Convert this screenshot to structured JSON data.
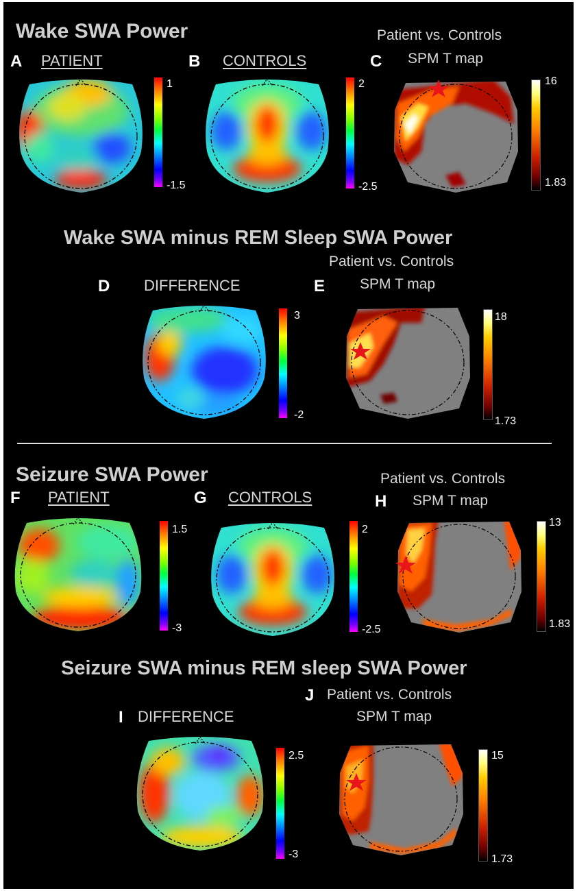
{
  "sections": {
    "wake_title": "Wake SWA Power",
    "wake_minus_rem_title": "Wake SWA minus REM Sleep SWA Power",
    "seizure_title": "Seizure SWA Power",
    "seizure_minus_rem_title": "Seizure SWA minus REM sleep SWA Power"
  },
  "panels": {
    "A": {
      "letter": "A",
      "label": "PATIENT",
      "cbar_max": "1",
      "cbar_min": "-1.5"
    },
    "B": {
      "letter": "B",
      "label": "CONTROLS",
      "cbar_max": "2",
      "cbar_min": "-2.5"
    },
    "C": {
      "letter": "C",
      "caption1": "Patient vs. Controls",
      "caption2": "SPM T map",
      "cbar_max": "16",
      "cbar_min": "1.83"
    },
    "D": {
      "letter": "D",
      "label": "DIFFERENCE",
      "cbar_max": "3",
      "cbar_min": "-2"
    },
    "E": {
      "letter": "E",
      "caption1": "Patient vs. Controls",
      "caption2": "SPM T map",
      "cbar_max": "18",
      "cbar_min": "1.73"
    },
    "F": {
      "letter": "F",
      "label": "PATIENT",
      "cbar_max": "1.5",
      "cbar_min": "-3"
    },
    "G": {
      "letter": "G",
      "label": "CONTROLS",
      "cbar_max": "2",
      "cbar_min": "-2.5"
    },
    "H": {
      "letter": "H",
      "caption1": "Patient vs. Controls",
      "caption2": "SPM T map",
      "cbar_max": "13",
      "cbar_min": "1.83"
    },
    "I": {
      "letter": "I",
      "label": "DIFFERENCE",
      "cbar_max": "2.5",
      "cbar_min": "-3"
    },
    "J": {
      "letter": "J",
      "caption1": "Patient vs. Controls",
      "caption2": "SPM T map",
      "cbar_max": "15",
      "cbar_min": "1.73"
    }
  },
  "colormaps": {
    "power": "jet (red-yellow-green-cyan-blue-magenta)",
    "tmap": "hot (white-yellow-orange-red-black)",
    "background_gray": "#7f7f7f",
    "star": "#e8151b"
  }
}
